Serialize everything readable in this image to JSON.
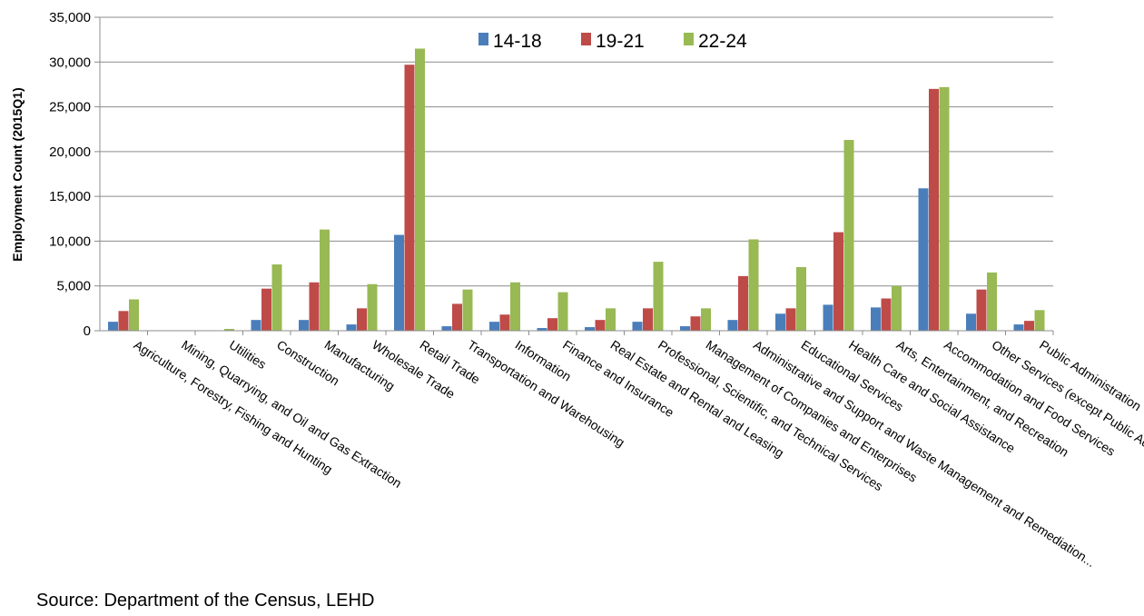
{
  "chart_data": {
    "type": "bar",
    "ylabel": "Employment Count (2015Q1)",
    "ylim": [
      0,
      35000
    ],
    "yticks": [
      0,
      5000,
      10000,
      15000,
      20000,
      25000,
      30000,
      35000
    ],
    "ytick_labels": [
      "0",
      "5,000",
      "10,000",
      "15,000",
      "20,000",
      "25,000",
      "30,000",
      "35,000"
    ],
    "grid": true,
    "legend_position": "top-center",
    "categories": [
      "Agriculture, Forestry, Fishing and Hunting",
      "Mining, Quarrying, and Oil and Gas Extraction",
      "Utilities",
      "Construction",
      "Manufacturing",
      "Wholesale Trade",
      "Retail Trade",
      "Transportation and Warehousing",
      "Information",
      "Finance and Insurance",
      "Real Estate and Rental and Leasing",
      "Professional, Scientific, and Technical Services",
      "Management of Companies and Enterprises",
      "Administrative and Support and Waste Management and Remediation...",
      "Educational Services",
      "Health Care and Social Assistance",
      "Arts, Entertainment, and Recreation",
      "Accommodation and Food Services",
      "Other Services (except Public Ad",
      "Public Administration"
    ],
    "series": [
      {
        "name": "14-18",
        "color": "#4a7ebb",
        "values": [
          1000,
          50,
          50,
          1200,
          1200,
          700,
          10700,
          500,
          1000,
          300,
          400,
          1000,
          500,
          1200,
          1900,
          2900,
          2600,
          15900,
          1900,
          700
        ]
      },
      {
        "name": "19-21",
        "color": "#be4b48",
        "values": [
          2200,
          50,
          50,
          4700,
          5400,
          2500,
          29700,
          3000,
          1800,
          1400,
          1200,
          2500,
          1600,
          6100,
          2500,
          11000,
          3600,
          27000,
          4600,
          1100
        ]
      },
      {
        "name": "22-24",
        "color": "#98b954",
        "values": [
          3500,
          50,
          200,
          7400,
          11300,
          5200,
          31500,
          4600,
          5400,
          4300,
          2500,
          7700,
          2500,
          10200,
          7100,
          21300,
          5000,
          27200,
          6500,
          2300
        ]
      }
    ]
  },
  "source": "Source: Department of the Census, LEHD"
}
